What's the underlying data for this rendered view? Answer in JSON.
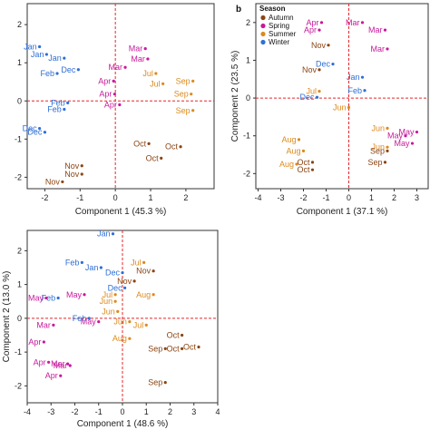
{
  "season_colors": {
    "Autumn": "#8b4513",
    "Spring": "#c8189c",
    "Summer": "#dd8a1e",
    "Winter": "#2f6fd6"
  },
  "legend": {
    "title": "Season",
    "items": [
      "Autumn",
      "Spring",
      "Summer",
      "Winter"
    ]
  },
  "chart_data": [
    {
      "type": "scatter",
      "panel": "",
      "xlabel": "Component 1  (45.3 %)",
      "ylabel": "",
      "xlim": [
        -2.5,
        2.8
      ],
      "ylim": [
        -2.3,
        2.55
      ],
      "xticks": [
        -2,
        -1,
        0,
        1,
        2
      ],
      "xtick_labels": [
        "-2",
        "-1",
        "0",
        "1",
        "2"
      ],
      "yticks": [
        -2,
        -1,
        0,
        1,
        2
      ],
      "ytick_labels": [
        "-2",
        "-1",
        "0",
        "1",
        "2"
      ],
      "points": [
        {
          "label": "Jan",
          "season": "Winter",
          "x": -2.15,
          "y": 1.42
        },
        {
          "label": "Jan",
          "season": "Winter",
          "x": -1.95,
          "y": 1.22
        },
        {
          "label": "Jan",
          "season": "Winter",
          "x": -1.45,
          "y": 1.12
        },
        {
          "label": "Feb",
          "season": "Winter",
          "x": -1.65,
          "y": 0.72
        },
        {
          "label": "Dec",
          "season": "Winter",
          "x": -1.05,
          "y": 0.82
        },
        {
          "label": "Feb",
          "season": "Winter",
          "x": -1.35,
          "y": -0.05
        },
        {
          "label": "Feb",
          "season": "Winter",
          "x": -1.45,
          "y": -0.22
        },
        {
          "label": "Dec",
          "season": "Winter",
          "x": -2.15,
          "y": -0.72
        },
        {
          "label": "Dec",
          "season": "Winter",
          "x": -2.0,
          "y": -0.82
        },
        {
          "label": "Mar",
          "season": "Spring",
          "x": 0.85,
          "y": 1.37
        },
        {
          "label": "Mar",
          "season": "Spring",
          "x": 0.92,
          "y": 1.1
        },
        {
          "label": "Mar",
          "season": "Spring",
          "x": 0.28,
          "y": 0.88
        },
        {
          "label": "Apr",
          "season": "Spring",
          "x": -0.05,
          "y": 0.52
        },
        {
          "label": "Apr",
          "season": "Spring",
          "x": -0.02,
          "y": 0.18
        },
        {
          "label": "Apr",
          "season": "Spring",
          "x": 0.12,
          "y": -0.1
        },
        {
          "label": "Jul",
          "season": "Summer",
          "x": 1.15,
          "y": 0.72
        },
        {
          "label": "Jul",
          "season": "Summer",
          "x": 1.35,
          "y": 0.45
        },
        {
          "label": "Sep",
          "season": "Summer",
          "x": 2.2,
          "y": 0.52
        },
        {
          "label": "Sep",
          "season": "Summer",
          "x": 2.15,
          "y": 0.18
        },
        {
          "label": "Sep",
          "season": "Summer",
          "x": 2.2,
          "y": -0.25
        },
        {
          "label": "Oct",
          "season": "Autumn",
          "x": 0.95,
          "y": -1.12
        },
        {
          "label": "Oct",
          "season": "Autumn",
          "x": 1.85,
          "y": -1.2
        },
        {
          "label": "Oct",
          "season": "Autumn",
          "x": 1.3,
          "y": -1.5
        },
        {
          "label": "Nov",
          "season": "Autumn",
          "x": -0.95,
          "y": -1.7
        },
        {
          "label": "Nov",
          "season": "Autumn",
          "x": -0.95,
          "y": -1.92
        },
        {
          "label": "Nov",
          "season": "Autumn",
          "x": -1.5,
          "y": -2.12
        }
      ]
    },
    {
      "type": "scatter",
      "panel": "b",
      "xlabel": "Component 1  (37.1 %)",
      "ylabel": "Component 2  (23.5 %)",
      "xlim": [
        -4.1,
        3.5
      ],
      "ylim": [
        -2.4,
        2.5
      ],
      "xticks": [
        -4,
        -3,
        -2,
        -1,
        0,
        1,
        2,
        3
      ],
      "xtick_labels": [
        "-4",
        "-3",
        "-2",
        "-1",
        "0",
        "1",
        "2",
        "3"
      ],
      "yticks": [
        -2,
        -1,
        0,
        1,
        2
      ],
      "ytick_labels": [
        "-2",
        "-1",
        "0",
        "1",
        "2"
      ],
      "points": [
        {
          "label": "Apr",
          "season": "Spring",
          "x": -1.2,
          "y": 2.0
        },
        {
          "label": "Apr",
          "season": "Spring",
          "x": -1.3,
          "y": 1.8
        },
        {
          "label": "Mar",
          "season": "Spring",
          "x": 0.6,
          "y": 2.0
        },
        {
          "label": "Mar",
          "season": "Spring",
          "x": 1.6,
          "y": 1.8
        },
        {
          "label": "Mar",
          "season": "Spring",
          "x": 1.7,
          "y": 1.3
        },
        {
          "label": "Nov",
          "season": "Autumn",
          "x": -0.9,
          "y": 1.4
        },
        {
          "label": "Dec",
          "season": "Winter",
          "x": -0.7,
          "y": 0.9
        },
        {
          "label": "Nov",
          "season": "Autumn",
          "x": -1.3,
          "y": 0.75
        },
        {
          "label": "Jan",
          "season": "Winter",
          "x": 0.6,
          "y": 0.55
        },
        {
          "label": "Jul",
          "season": "Summer",
          "x": -1.3,
          "y": 0.18
        },
        {
          "label": "Dec",
          "season": "Winter",
          "x": -1.4,
          "y": 0.02
        },
        {
          "label": "Feb",
          "season": "Winter",
          "x": 0.7,
          "y": 0.2
        },
        {
          "label": "Jun",
          "season": "Summer",
          "x": 0.0,
          "y": -0.25
        },
        {
          "label": "Aug",
          "season": "Summer",
          "x": -2.2,
          "y": -1.1
        },
        {
          "label": "Aug",
          "season": "Summer",
          "x": -2.0,
          "y": -1.4
        },
        {
          "label": "Aug",
          "season": "Summer",
          "x": -2.3,
          "y": -1.75
        },
        {
          "label": "Oct",
          "season": "Autumn",
          "x": -1.6,
          "y": -1.7
        },
        {
          "label": "Oct",
          "season": "Autumn",
          "x": -1.6,
          "y": -1.9
        },
        {
          "label": "Jun",
          "season": "Summer",
          "x": 1.7,
          "y": -0.8
        },
        {
          "label": "Jun",
          "season": "Summer",
          "x": 1.7,
          "y": -1.3
        },
        {
          "label": "Sep",
          "season": "Autumn",
          "x": 1.7,
          "y": -1.4
        },
        {
          "label": "Sep",
          "season": "Autumn",
          "x": 1.6,
          "y": -1.7
        },
        {
          "label": "May",
          "season": "Spring",
          "x": 2.5,
          "y": -1.0
        },
        {
          "label": "May",
          "season": "Spring",
          "x": 3.0,
          "y": -0.9
        },
        {
          "label": "May",
          "season": "Spring",
          "x": 2.8,
          "y": -1.2
        }
      ]
    },
    {
      "type": "scatter",
      "panel": "",
      "xlabel": "Component 1  (48.6 %)",
      "ylabel": "Component 2  (13.0 %)",
      "xlim": [
        -4.0,
        4.0
      ],
      "ylim": [
        -2.5,
        2.6
      ],
      "xticks": [
        -4,
        -3,
        -2,
        -1,
        0,
        1,
        2,
        3,
        4
      ],
      "xtick_labels": [
        "-4",
        "-3",
        "-2",
        "-1",
        "0",
        "1",
        "2",
        "3",
        "4"
      ],
      "yticks": [
        -2,
        -1,
        0,
        1,
        2
      ],
      "ytick_labels": [
        "-2",
        "-1",
        "0",
        "1",
        "2"
      ],
      "points": [
        {
          "label": "Jan",
          "season": "Winter",
          "x": -0.4,
          "y": 2.5
        },
        {
          "label": "Feb",
          "season": "Winter",
          "x": -1.7,
          "y": 1.65
        },
        {
          "label": "Jan",
          "season": "Winter",
          "x": -0.9,
          "y": 1.5
        },
        {
          "label": "Dec",
          "season": "Winter",
          "x": 0.0,
          "y": 1.35
        },
        {
          "label": "Dec",
          "season": "Winter",
          "x": 0.1,
          "y": 0.9
        },
        {
          "label": "Nov",
          "season": "Autumn",
          "x": 1.3,
          "y": 1.4
        },
        {
          "label": "Nov",
          "season": "Autumn",
          "x": 0.5,
          "y": 1.1
        },
        {
          "label": "Jul",
          "season": "Summer",
          "x": 0.9,
          "y": 1.65
        },
        {
          "label": "Jul",
          "season": "Summer",
          "x": -0.3,
          "y": 0.7
        },
        {
          "label": "Aug",
          "season": "Summer",
          "x": 1.3,
          "y": 0.7
        },
        {
          "label": "Feb",
          "season": "Winter",
          "x": -2.7,
          "y": 0.6
        },
        {
          "label": "May",
          "season": "Spring",
          "x": -1.6,
          "y": 0.7
        },
        {
          "label": "May",
          "season": "Spring",
          "x": -3.2,
          "y": 0.6
        },
        {
          "label": "Jun",
          "season": "Summer",
          "x": -0.3,
          "y": 0.5
        },
        {
          "label": "Jun",
          "season": "Summer",
          "x": -0.2,
          "y": 0.2
        },
        {
          "label": "Feb",
          "season": "Winter",
          "x": -1.4,
          "y": 0.0
        },
        {
          "label": "May",
          "season": "Spring",
          "x": -1.0,
          "y": -0.1
        },
        {
          "label": "Mar",
          "season": "Spring",
          "x": -2.9,
          "y": -0.2
        },
        {
          "label": "Apr",
          "season": "Spring",
          "x": -3.3,
          "y": -0.7
        },
        {
          "label": "Jun",
          "season": "Summer",
          "x": 0.3,
          "y": -0.1
        },
        {
          "label": "Jul",
          "season": "Summer",
          "x": 1.0,
          "y": -0.2
        },
        {
          "label": "Aug",
          "season": "Summer",
          "x": 0.3,
          "y": -0.6
        },
        {
          "label": "Oct",
          "season": "Autumn",
          "x": 2.5,
          "y": -0.5
        },
        {
          "label": "Oct",
          "season": "Autumn",
          "x": 2.5,
          "y": -0.9
        },
        {
          "label": "Oct",
          "season": "Autumn",
          "x": 3.2,
          "y": -0.85
        },
        {
          "label": "Sep",
          "season": "Autumn",
          "x": 1.8,
          "y": -0.9
        },
        {
          "label": "Sep",
          "season": "Autumn",
          "x": 1.8,
          "y": -1.9
        },
        {
          "label": "Apr",
          "season": "Spring",
          "x": -3.1,
          "y": -1.3
        },
        {
          "label": "Apr",
          "season": "Spring",
          "x": -2.6,
          "y": -1.7
        },
        {
          "label": "Mar",
          "season": "Spring",
          "x": -2.3,
          "y": -1.35
        },
        {
          "label": "Mar",
          "season": "Spring",
          "x": -2.2,
          "y": -1.4
        }
      ]
    }
  ]
}
